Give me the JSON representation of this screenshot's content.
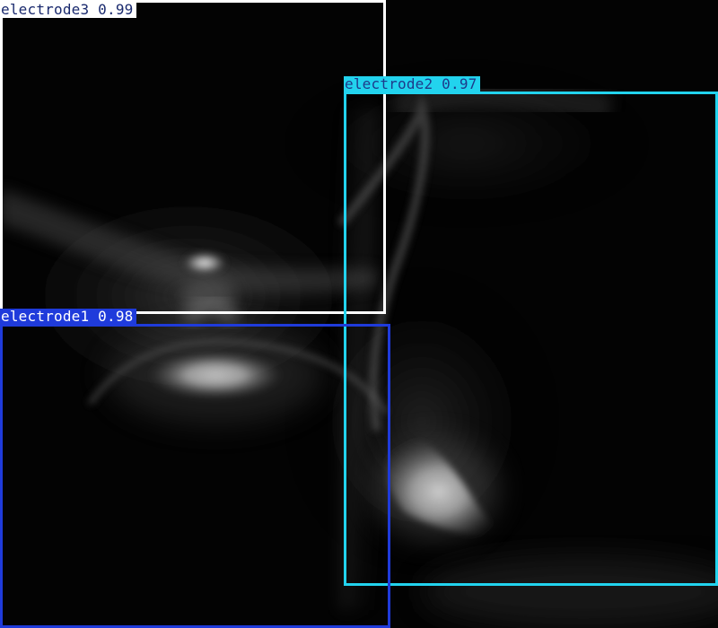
{
  "image": {
    "background_color": "#030303"
  },
  "detections": [
    {
      "id": "electrode3",
      "label": "electrode3 0.99",
      "class": "electrode3",
      "confidence": 0.99,
      "color": "#ffffff",
      "label_text_color": "#1a2a6e"
    },
    {
      "id": "electrode2",
      "label": "electrode2 0.97",
      "class": "electrode2",
      "confidence": 0.97,
      "color": "#22d3ee",
      "label_text_color": "#1e3a8a"
    },
    {
      "id": "electrode1",
      "label": "electrode1 0.98",
      "class": "electrode1",
      "confidence": 0.98,
      "color": "#1f3bdb",
      "label_text_color": "#ffffff"
    }
  ]
}
